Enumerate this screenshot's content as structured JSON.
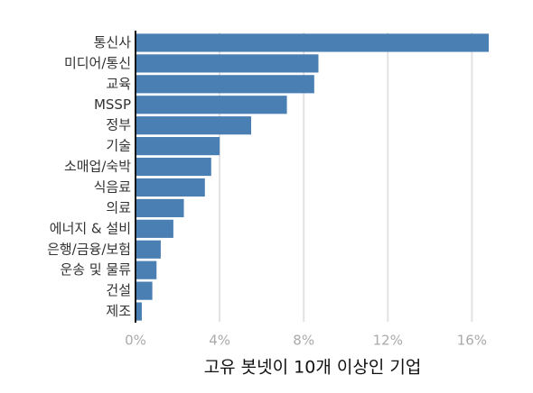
{
  "chart_data": {
    "type": "barh",
    "x_label": "고유 봇넷이 10개 이상인 기업",
    "categories": [
      "통신사",
      "미디어/통신",
      "교육",
      "MSSP",
      "정부",
      "기술",
      "소매업/숙박",
      "식음료",
      "의료",
      "에너지 & 설비",
      "은행/금융/보험",
      "운송 및 물류",
      "건설",
      "제조"
    ],
    "values": [
      16.8,
      8.7,
      8.5,
      7.2,
      5.5,
      4.0,
      3.6,
      3.3,
      2.3,
      1.8,
      1.2,
      1.0,
      0.8,
      0.3
    ],
    "color": "#4a7fb4",
    "xlim": [
      0,
      16.8
    ],
    "xticks": [
      {
        "value": 0,
        "label": "0%"
      },
      {
        "value": 4,
        "label": "4%"
      },
      {
        "value": 8,
        "label": "8%"
      },
      {
        "value": 12,
        "label": "12%"
      },
      {
        "value": 16,
        "label": "16%"
      }
    ],
    "grid": true
  }
}
